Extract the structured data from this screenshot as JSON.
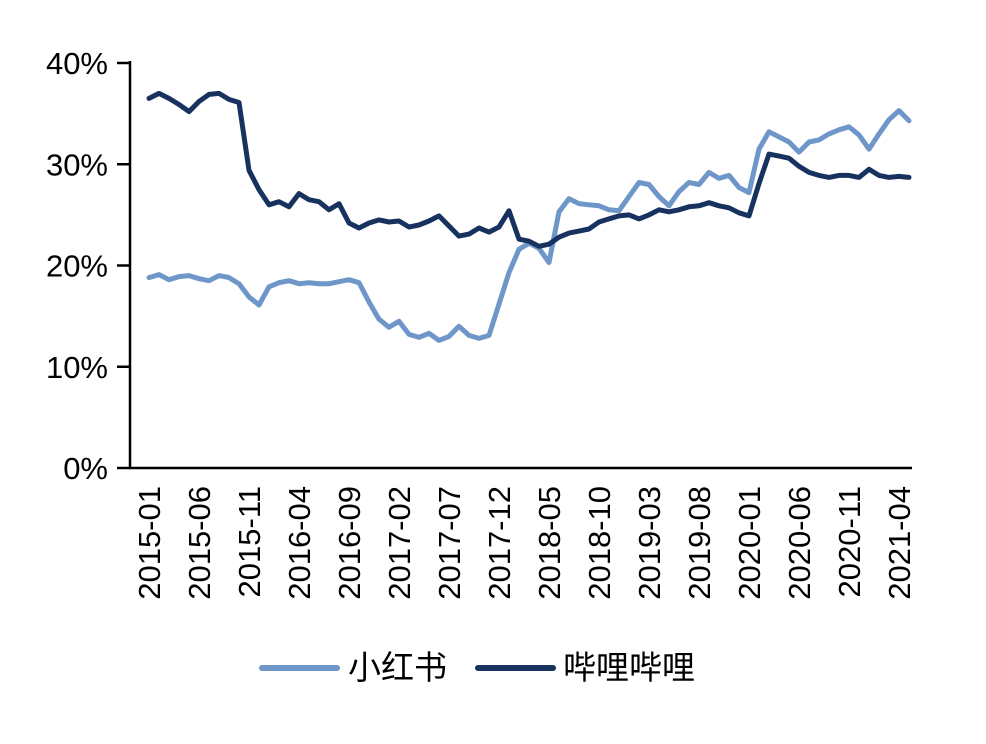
{
  "chart_data": {
    "type": "line",
    "title": "",
    "xlabel": "",
    "ylabel": "",
    "ylim": [
      0,
      40
    ],
    "grid": false,
    "legend_position": "bottom",
    "background": "#FFFFFF",
    "axis_color": "#000000",
    "y_ticks": [
      {
        "value": 0,
        "label": "0%"
      },
      {
        "value": 10,
        "label": "10%"
      },
      {
        "value": 20,
        "label": "20%"
      },
      {
        "value": 30,
        "label": "30%"
      },
      {
        "value": 40,
        "label": "40%"
      }
    ],
    "x_tick_labels": [
      "2015-01",
      "2015-06",
      "2015-11",
      "2016-04",
      "2016-09",
      "2017-02",
      "2017-07",
      "2017-12",
      "2018-05",
      "2018-10",
      "2019-03",
      "2019-08",
      "2020-01",
      "2020-06",
      "2020-11",
      "2021-04"
    ],
    "x": [
      "2015-01",
      "2015-02",
      "2015-03",
      "2015-04",
      "2015-05",
      "2015-06",
      "2015-07",
      "2015-08",
      "2015-09",
      "2015-10",
      "2015-11",
      "2015-12",
      "2016-01",
      "2016-02",
      "2016-03",
      "2016-04",
      "2016-05",
      "2016-06",
      "2016-07",
      "2016-08",
      "2016-09",
      "2016-10",
      "2016-11",
      "2016-12",
      "2017-01",
      "2017-02",
      "2017-03",
      "2017-04",
      "2017-05",
      "2017-06",
      "2017-07",
      "2017-08",
      "2017-09",
      "2017-10",
      "2017-11",
      "2017-12",
      "2018-01",
      "2018-02",
      "2018-03",
      "2018-04",
      "2018-05",
      "2018-06",
      "2018-07",
      "2018-08",
      "2018-09",
      "2018-10",
      "2018-11",
      "2018-12",
      "2019-01",
      "2019-02",
      "2019-03",
      "2019-04",
      "2019-05",
      "2019-06",
      "2019-07",
      "2019-08",
      "2019-09",
      "2019-10",
      "2019-11",
      "2019-12",
      "2020-01",
      "2020-02",
      "2020-03",
      "2020-04",
      "2020-05",
      "2020-06",
      "2020-07",
      "2020-08",
      "2020-09",
      "2020-10",
      "2020-11",
      "2020-12",
      "2021-01",
      "2021-02",
      "2021-03",
      "2021-04",
      "2021-05"
    ],
    "series": [
      {
        "name": "小红书",
        "color": "#6E96C8",
        "values": [
          18.8,
          19.1,
          18.6,
          18.9,
          19.0,
          18.7,
          18.5,
          19.0,
          18.8,
          18.2,
          16.9,
          16.1,
          17.9,
          18.3,
          18.5,
          18.2,
          18.3,
          18.2,
          18.2,
          18.4,
          18.6,
          18.3,
          16.4,
          14.7,
          13.9,
          14.5,
          13.2,
          12.9,
          13.3,
          12.6,
          13.0,
          14.0,
          13.1,
          12.8,
          13.1,
          16.2,
          19.3,
          21.6,
          22.2,
          21.7,
          20.3,
          25.3,
          26.6,
          26.1,
          26.0,
          25.9,
          25.5,
          25.4,
          26.8,
          28.2,
          28.0,
          26.8,
          25.9,
          27.3,
          28.2,
          28.0,
          29.2,
          28.6,
          28.9,
          27.7,
          27.2,
          31.5,
          33.2,
          32.7,
          32.2,
          31.2,
          32.2,
          32.4,
          33.0,
          33.4,
          33.7,
          32.9,
          31.5,
          33.0,
          34.4,
          35.3,
          34.3
        ]
      },
      {
        "name": "哔哩哔哩",
        "color": "#17325E",
        "values": [
          36.5,
          37.0,
          36.5,
          35.9,
          35.2,
          36.2,
          36.9,
          37.0,
          36.4,
          36.1,
          29.4,
          27.5,
          26.0,
          26.3,
          25.8,
          27.1,
          26.5,
          26.3,
          25.5,
          26.1,
          24.2,
          23.7,
          24.2,
          24.5,
          24.3,
          24.4,
          23.8,
          24.0,
          24.4,
          24.9,
          23.9,
          22.9,
          23.1,
          23.7,
          23.3,
          23.8,
          25.4,
          22.6,
          22.4,
          21.9,
          22.1,
          22.8,
          23.2,
          23.4,
          23.6,
          24.3,
          24.6,
          24.9,
          25.0,
          24.6,
          25.0,
          25.5,
          25.3,
          25.5,
          25.8,
          25.9,
          26.2,
          25.9,
          25.7,
          25.2,
          24.9,
          28.1,
          31.0,
          30.8,
          30.6,
          29.8,
          29.2,
          28.9,
          28.7,
          28.9,
          28.9,
          28.7,
          29.5,
          28.9,
          28.7,
          28.8,
          28.7
        ]
      }
    ]
  }
}
